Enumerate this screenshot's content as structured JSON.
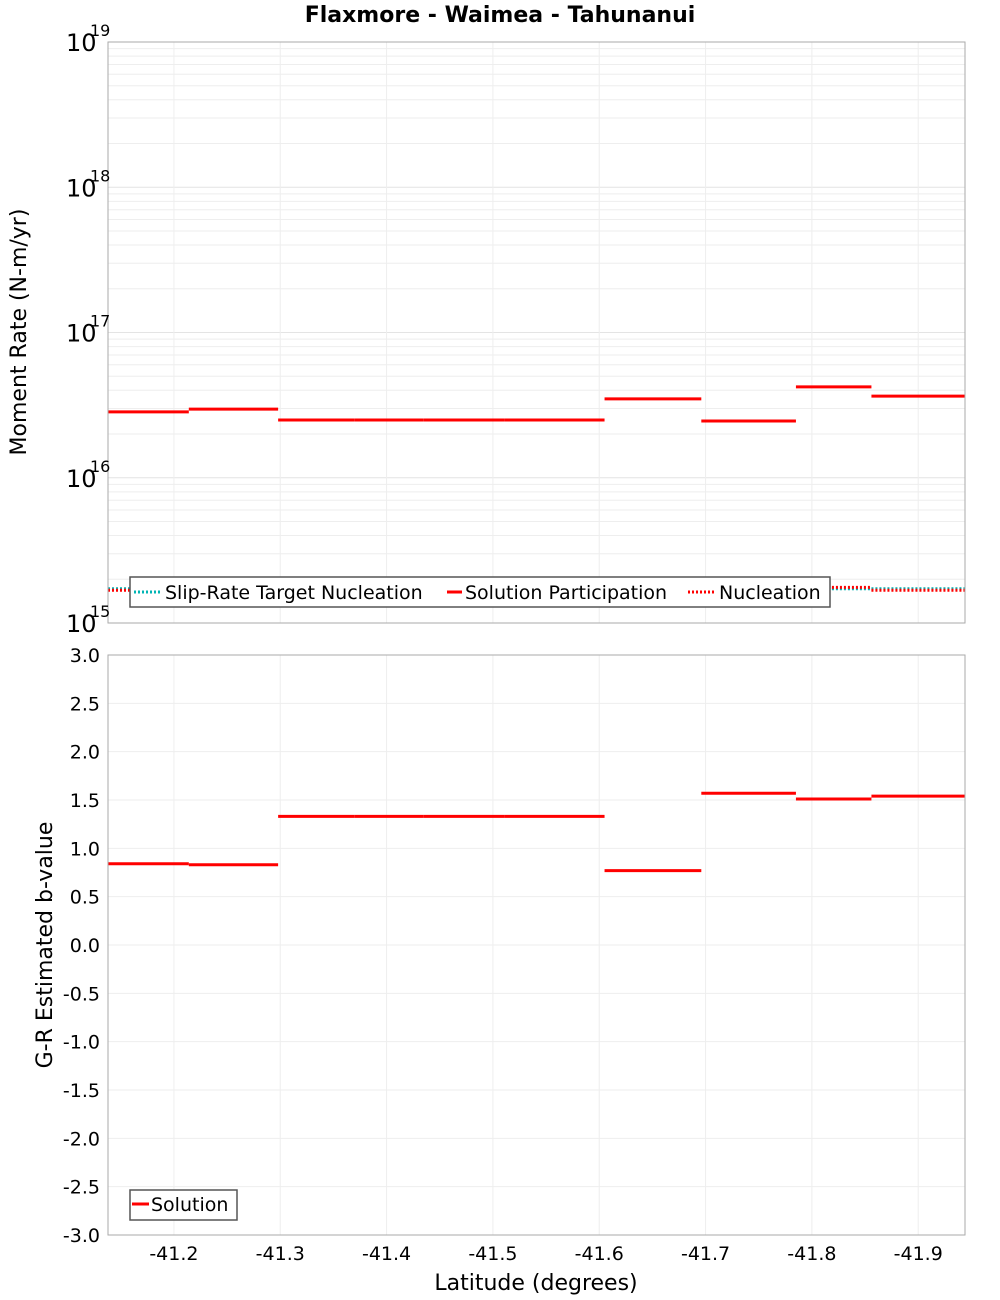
{
  "chart_data": [
    {
      "type": "line",
      "subtype": "step",
      "title": "Flaxmore - Waimea - Tahunanui",
      "xlabel": "",
      "ylabel": "Moment Rate (N-m/yr)",
      "yscale": "log",
      "ylim": [
        1000000000000000.0,
        1e+19
      ],
      "xlim": [
        -41.138,
        -41.944
      ],
      "x_ticks": [
        -41.2,
        -41.3,
        -41.4,
        -41.5,
        -41.6,
        -41.7,
        -41.8,
        -41.9
      ],
      "y_ticks": [
        "10^15",
        "10^16",
        "10^17",
        "10^18",
        "10^19"
      ],
      "grid": true,
      "legend_position": "bottom-left inside",
      "legend": [
        "Slip-Rate Target Nucleation",
        "Solution Participation",
        "Nucleation"
      ],
      "segment_edges": [
        -41.138,
        -41.214,
        -41.298,
        -41.37,
        -41.435,
        -41.511,
        -41.605,
        -41.696,
        -41.785,
        -41.856,
        -41.944
      ],
      "series": [
        {
          "name": "Slip-Rate Target Nucleation",
          "color": "#00b4b4",
          "style": "dotted",
          "values": [
            1720000000000000.0,
            1720000000000000.0,
            1720000000000000.0,
            1720000000000000.0,
            1720000000000000.0,
            1720000000000000.0,
            1720000000000000.0,
            1720000000000000.0,
            1720000000000000.0,
            1720000000000000.0
          ]
        },
        {
          "name": "Solution Participation",
          "color": "#ff0000",
          "style": "solid",
          "values": [
            2.84e+16,
            2.97e+16,
            2.5e+16,
            2.5e+16,
            2.5e+16,
            2.5e+16,
            3.49e+16,
            2.46e+16,
            4.22e+16,
            3.65e+16
          ]
        },
        {
          "name": "Nucleation",
          "color": "#ff0000",
          "style": "dotted",
          "values": [
            1680000000000000.0,
            1720000000000000.0,
            1720000000000000.0,
            1720000000000000.0,
            1720000000000000.0,
            1720000000000000.0,
            1720000000000000.0,
            1720000000000000.0,
            1760000000000000.0,
            1680000000000000.0
          ]
        }
      ]
    },
    {
      "type": "line",
      "subtype": "step",
      "title": "",
      "xlabel": "Latitude (degrees)",
      "ylabel": "G-R Estimated b-value",
      "ylim": [
        -3.0,
        3.0
      ],
      "xlim": [
        -41.138,
        -41.944
      ],
      "x_ticks": [
        -41.2,
        -41.3,
        -41.4,
        -41.5,
        -41.6,
        -41.7,
        -41.8,
        -41.9
      ],
      "y_ticks": [
        3.0,
        2.5,
        2.0,
        1.5,
        1.0,
        0.5,
        0.0,
        -0.5,
        -1.0,
        -1.5,
        -2.0,
        -2.5,
        -3.0
      ],
      "grid": true,
      "legend_position": "bottom-left inside",
      "legend": [
        "Solution"
      ],
      "segment_edges": [
        -41.138,
        -41.214,
        -41.298,
        -41.37,
        -41.435,
        -41.511,
        -41.605,
        -41.696,
        -41.785,
        -41.856,
        -41.944
      ],
      "series": [
        {
          "name": "Solution",
          "color": "#ff0000",
          "style": "solid",
          "values": [
            0.84,
            0.83,
            1.33,
            1.33,
            1.33,
            1.33,
            0.77,
            1.57,
            1.51,
            1.54
          ]
        }
      ]
    }
  ],
  "labels": {
    "title": "Flaxmore - Waimea - Tahunanui",
    "top_ylabel": "Moment Rate (N-m/yr)",
    "bottom_ylabel": "G-R Estimated b-value",
    "xlabel": "Latitude (degrees)",
    "top_legend": [
      "Slip-Rate Target Nucleation",
      "Solution Participation",
      "Nucleation"
    ],
    "bottom_legend": [
      "Solution"
    ]
  }
}
